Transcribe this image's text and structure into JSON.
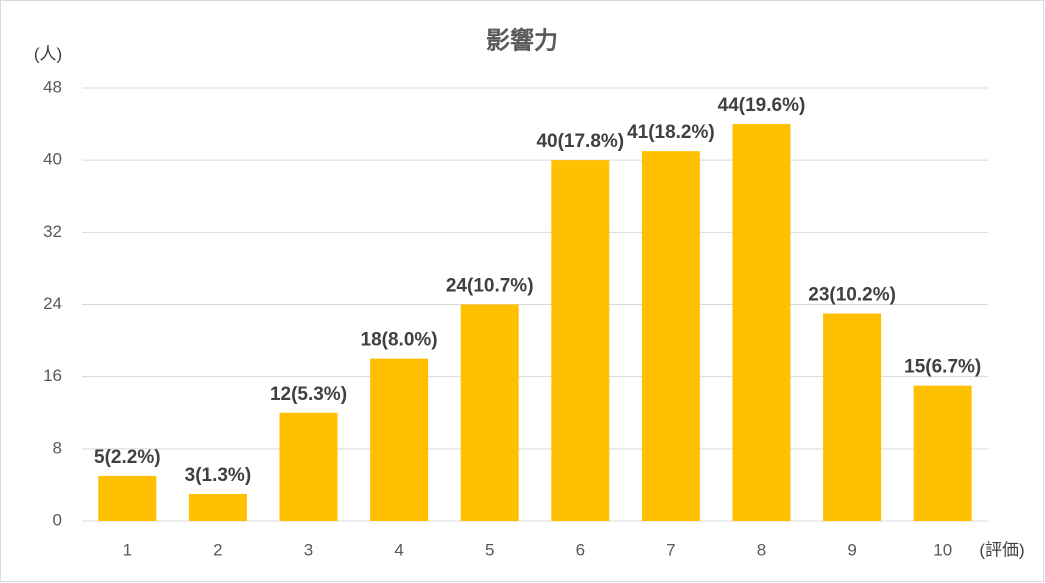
{
  "chart_data": {
    "type": "bar",
    "title": "影響力",
    "y_label": "(人)",
    "x_label": "(評価)",
    "categories": [
      "1",
      "2",
      "3",
      "4",
      "5",
      "6",
      "7",
      "8",
      "9",
      "10"
    ],
    "values": [
      5,
      3,
      12,
      18,
      24,
      40,
      41,
      44,
      23,
      15
    ],
    "value_labels": [
      "5(2.2%)",
      "3(1.3%)",
      "12(5.3%)",
      "18(8.0%)",
      "24(10.7%)",
      "40(17.8%)",
      "41(18.2%)",
      "44(19.6%)",
      "23(10.2%)",
      "15(6.7%)"
    ],
    "color": "#ffc000",
    "ylim": [
      0,
      48
    ],
    "yticks": [
      0,
      8,
      16,
      24,
      32,
      40,
      48
    ],
    "grid": true
  }
}
